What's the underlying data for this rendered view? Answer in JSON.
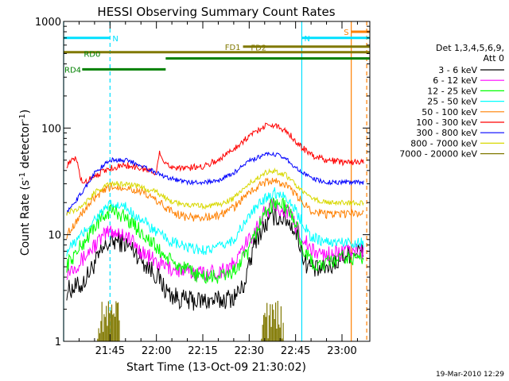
{
  "chart_data": {
    "type": "line",
    "title": "HESSI Observing Summary Count Rates",
    "xlabel": "Start Time (13-Oct-09 21:30:02)",
    "ylabel_main": "Count Rate (s",
    "ylabel_sup1": "-1",
    "ylabel_mid": " detector",
    "ylabel_sup2": "-1",
    "ylabel_end": ")",
    "y_scale": "log",
    "ylim": [
      1,
      1000
    ],
    "y_ticks": [
      {
        "value": 1,
        "label": "1"
      },
      {
        "value": 10,
        "label": "10"
      },
      {
        "value": 100,
        "label": "100"
      },
      {
        "value": 1000,
        "label": "1000"
      }
    ],
    "xlim": [
      "21:30",
      "23:09"
    ],
    "x_ticks": [
      {
        "value": "21:45",
        "label": "21:45"
      },
      {
        "value": "22:00",
        "label": "22:00"
      },
      {
        "value": "22:15",
        "label": "22:15"
      },
      {
        "value": "22:30",
        "label": "22:30"
      },
      {
        "value": "22:45",
        "label": "22:45"
      },
      {
        "value": "23:00",
        "label": "23:00"
      }
    ],
    "legend_header": [
      "Det 1,3,4,5,6,9,",
      "Att 0"
    ],
    "legend_position": "right",
    "series": [
      {
        "name": "3 - 6 keV",
        "color": "#000000",
        "points": [
          [
            "21:31",
            3
          ],
          [
            "21:36",
            3.4
          ],
          [
            "21:40",
            5.4
          ],
          [
            "21:44",
            8
          ],
          [
            "21:47",
            8.8
          ],
          [
            "21:50",
            8.2
          ],
          [
            "21:53",
            7
          ],
          [
            "21:56",
            5.5
          ],
          [
            "21:59",
            4.5
          ],
          [
            "22:01",
            3.8
          ],
          [
            "22:03",
            3
          ],
          [
            "22:06",
            2.6
          ],
          [
            "22:10",
            2.4
          ],
          [
            "22:15",
            2.4
          ],
          [
            "22:20",
            2.4
          ],
          [
            "22:25",
            2.6
          ],
          [
            "22:28",
            3.2
          ],
          [
            "22:30",
            5
          ],
          [
            "22:32",
            9
          ],
          [
            "22:35",
            12
          ],
          [
            "22:38",
            15
          ],
          [
            "22:42",
            14
          ],
          [
            "22:44",
            12
          ],
          [
            "22:46",
            9
          ],
          [
            "22:48",
            5.5
          ],
          [
            "22:52",
            4.6
          ],
          [
            "22:56",
            5
          ],
          [
            "23:00",
            6.2
          ],
          [
            "23:04",
            7
          ],
          [
            "23:07",
            7
          ]
        ]
      },
      {
        "name": "6 - 12 keV",
        "color": "#ff00ff",
        "points": [
          [
            "21:31",
            4.5
          ],
          [
            "21:36",
            5.8
          ],
          [
            "21:40",
            8
          ],
          [
            "21:45",
            11
          ],
          [
            "21:50",
            10
          ],
          [
            "21:55",
            7
          ],
          [
            "22:00",
            5.5
          ],
          [
            "22:05",
            4.8
          ],
          [
            "22:10",
            4.5
          ],
          [
            "22:15",
            4.4
          ],
          [
            "22:20",
            4.5
          ],
          [
            "22:25",
            5.2
          ],
          [
            "22:30",
            9
          ],
          [
            "22:35",
            16
          ],
          [
            "22:38",
            19
          ],
          [
            "22:42",
            17
          ],
          [
            "22:46",
            11
          ],
          [
            "22:50",
            7
          ],
          [
            "22:55",
            6.5
          ],
          [
            "23:00",
            6.8
          ],
          [
            "23:07",
            7
          ]
        ]
      },
      {
        "name": "12 - 25 keV",
        "color": "#00ff00",
        "points": [
          [
            "21:31",
            5.2
          ],
          [
            "21:36",
            8
          ],
          [
            "21:40",
            12
          ],
          [
            "21:45",
            17
          ],
          [
            "21:48",
            16
          ],
          [
            "21:52",
            13
          ],
          [
            "21:56",
            10
          ],
          [
            "22:00",
            7.5
          ],
          [
            "22:05",
            5.5
          ],
          [
            "22:10",
            4.6
          ],
          [
            "22:15",
            4
          ],
          [
            "22:20",
            4
          ],
          [
            "22:25",
            4.5
          ],
          [
            "22:30",
            7
          ],
          [
            "22:33",
            12
          ],
          [
            "22:36",
            18
          ],
          [
            "22:39",
            20
          ],
          [
            "22:42",
            18
          ],
          [
            "22:45",
            13
          ],
          [
            "22:48",
            6.5
          ],
          [
            "22:52",
            5
          ],
          [
            "22:56",
            5.5
          ],
          [
            "23:00",
            6
          ],
          [
            "23:07",
            6
          ]
        ]
      },
      {
        "name": "25 - 50 keV",
        "color": "#00ffff",
        "points": [
          [
            "21:31",
            7
          ],
          [
            "21:36",
            10
          ],
          [
            "21:40",
            14
          ],
          [
            "21:45",
            19
          ],
          [
            "21:50",
            18
          ],
          [
            "21:55",
            14
          ],
          [
            "22:00",
            10.5
          ],
          [
            "22:05",
            8.5
          ],
          [
            "22:10",
            7.5
          ],
          [
            "22:15",
            7.2
          ],
          [
            "22:20",
            7.5
          ],
          [
            "22:25",
            9
          ],
          [
            "22:30",
            15
          ],
          [
            "22:35",
            22
          ],
          [
            "22:38",
            25
          ],
          [
            "22:42",
            23
          ],
          [
            "22:46",
            15
          ],
          [
            "22:50",
            9.5
          ],
          [
            "22:55",
            8.5
          ],
          [
            "23:00",
            8.5
          ],
          [
            "23:07",
            8.5
          ]
        ]
      },
      {
        "name": "50 - 100 keV",
        "color": "#ff8000",
        "points": [
          [
            "21:31",
            10
          ],
          [
            "21:36",
            16
          ],
          [
            "21:40",
            22
          ],
          [
            "21:45",
            28
          ],
          [
            "21:50",
            28
          ],
          [
            "21:55",
            25
          ],
          [
            "22:00",
            21
          ],
          [
            "22:03",
            18
          ],
          [
            "22:06",
            16
          ],
          [
            "22:10",
            14.5
          ],
          [
            "22:15",
            14.5
          ],
          [
            "22:20",
            15
          ],
          [
            "22:25",
            18
          ],
          [
            "22:30",
            25
          ],
          [
            "22:35",
            31
          ],
          [
            "22:38",
            32
          ],
          [
            "22:42",
            29
          ],
          [
            "22:46",
            22
          ],
          [
            "22:50",
            17
          ],
          [
            "22:55",
            15.5
          ],
          [
            "23:00",
            15.5
          ],
          [
            "23:07",
            16
          ]
        ]
      },
      {
        "name": "100 - 300 keV",
        "color": "#ff0000",
        "points": [
          [
            "21:31",
            45
          ],
          [
            "21:34",
            52
          ],
          [
            "21:36",
            30
          ],
          [
            "21:40",
            36
          ],
          [
            "21:45",
            42
          ],
          [
            "21:50",
            45
          ],
          [
            "21:55",
            42
          ],
          [
            "22:00",
            38
          ],
          [
            "22:01",
            62
          ],
          [
            "22:03",
            45
          ],
          [
            "22:06",
            43
          ],
          [
            "22:10",
            42
          ],
          [
            "22:15",
            44
          ],
          [
            "22:20",
            50
          ],
          [
            "22:25",
            64
          ],
          [
            "22:30",
            84
          ],
          [
            "22:35",
            105
          ],
          [
            "22:38",
            107
          ],
          [
            "22:42",
            95
          ],
          [
            "22:46",
            70
          ],
          [
            "22:50",
            56
          ],
          [
            "22:55",
            50
          ],
          [
            "23:00",
            48
          ],
          [
            "23:07",
            48
          ]
        ]
      },
      {
        "name": "300 - 800 keV",
        "color": "#0000ff",
        "points": [
          [
            "21:31",
            16
          ],
          [
            "21:36",
            25
          ],
          [
            "21:40",
            38
          ],
          [
            "21:45",
            50
          ],
          [
            "21:50",
            50
          ],
          [
            "21:55",
            45
          ],
          [
            "22:00",
            38
          ],
          [
            "22:03",
            35
          ],
          [
            "22:06",
            33
          ],
          [
            "22:10",
            31
          ],
          [
            "22:15",
            31
          ],
          [
            "22:20",
            32
          ],
          [
            "22:25",
            38
          ],
          [
            "22:30",
            49
          ],
          [
            "22:35",
            56
          ],
          [
            "22:38",
            57
          ],
          [
            "22:42",
            52
          ],
          [
            "22:46",
            40
          ],
          [
            "22:50",
            34
          ],
          [
            "22:55",
            31
          ],
          [
            "23:00",
            31
          ],
          [
            "23:07",
            31
          ]
        ]
      },
      {
        "name": "800 - 7000 keV",
        "color": "#d8d800",
        "points": [
          [
            "21:31",
            16
          ],
          [
            "21:36",
            18
          ],
          [
            "21:40",
            25
          ],
          [
            "21:45",
            30
          ],
          [
            "21:50",
            30
          ],
          [
            "21:55",
            28
          ],
          [
            "22:00",
            25
          ],
          [
            "22:03",
            22
          ],
          [
            "22:06",
            20
          ],
          [
            "22:10",
            19
          ],
          [
            "22:15",
            18.5
          ],
          [
            "22:20",
            19
          ],
          [
            "22:25",
            22
          ],
          [
            "22:30",
            30
          ],
          [
            "22:35",
            38
          ],
          [
            "22:38",
            40
          ],
          [
            "22:42",
            36
          ],
          [
            "22:46",
            27
          ],
          [
            "22:50",
            22
          ],
          [
            "22:55",
            20
          ],
          [
            "23:00",
            20
          ],
          [
            "23:07",
            20
          ]
        ]
      },
      {
        "name": "7000 - 20000 keV",
        "color": "#807800",
        "points": []
      }
    ],
    "high_energy_bursts": [
      {
        "start": "21:41",
        "end": "21:48",
        "max": 2.4
      },
      {
        "start": "22:34",
        "end": "22:41",
        "max": 2.4
      }
    ],
    "flag_bars": [
      {
        "label": "N",
        "color": "#00e0ff",
        "start": "21:30",
        "end": "21:45",
        "level": 700
      },
      {
        "label": "N",
        "color": "#00e0ff",
        "start": "22:47",
        "end": "23:09",
        "level": 700
      },
      {
        "label": "S",
        "color": "#ff8000",
        "start": "23:03",
        "end": "23:09",
        "level": 800
      },
      {
        "label": "FD1",
        "color": "#807800",
        "start": "22:28",
        "end": "23:09",
        "level": 580
      },
      {
        "label": "FD2",
        "color": "#807800",
        "start": "21:30",
        "end": "23:09",
        "level": 515
      },
      {
        "label": "RD0",
        "color": "#008000",
        "start": "22:03",
        "end": "23:09",
        "level": 450
      },
      {
        "label": "RD4",
        "color": "#008000",
        "start": "21:36",
        "end": "22:03",
        "level": 355
      }
    ],
    "vertical_lines": [
      {
        "time": "21:30",
        "color": "#00e0ff",
        "style": "solid"
      },
      {
        "time": "21:45",
        "color": "#00e0ff",
        "style": "dashed"
      },
      {
        "time": "22:47",
        "color": "#00e0ff",
        "style": "solid"
      },
      {
        "time": "23:03",
        "color": "#ff8000",
        "style": "solid"
      },
      {
        "time": "23:08",
        "color": "#ff8000",
        "style": "dashed"
      }
    ]
  },
  "footer": {
    "timestamp": "19-Mar-2010 12:29"
  }
}
